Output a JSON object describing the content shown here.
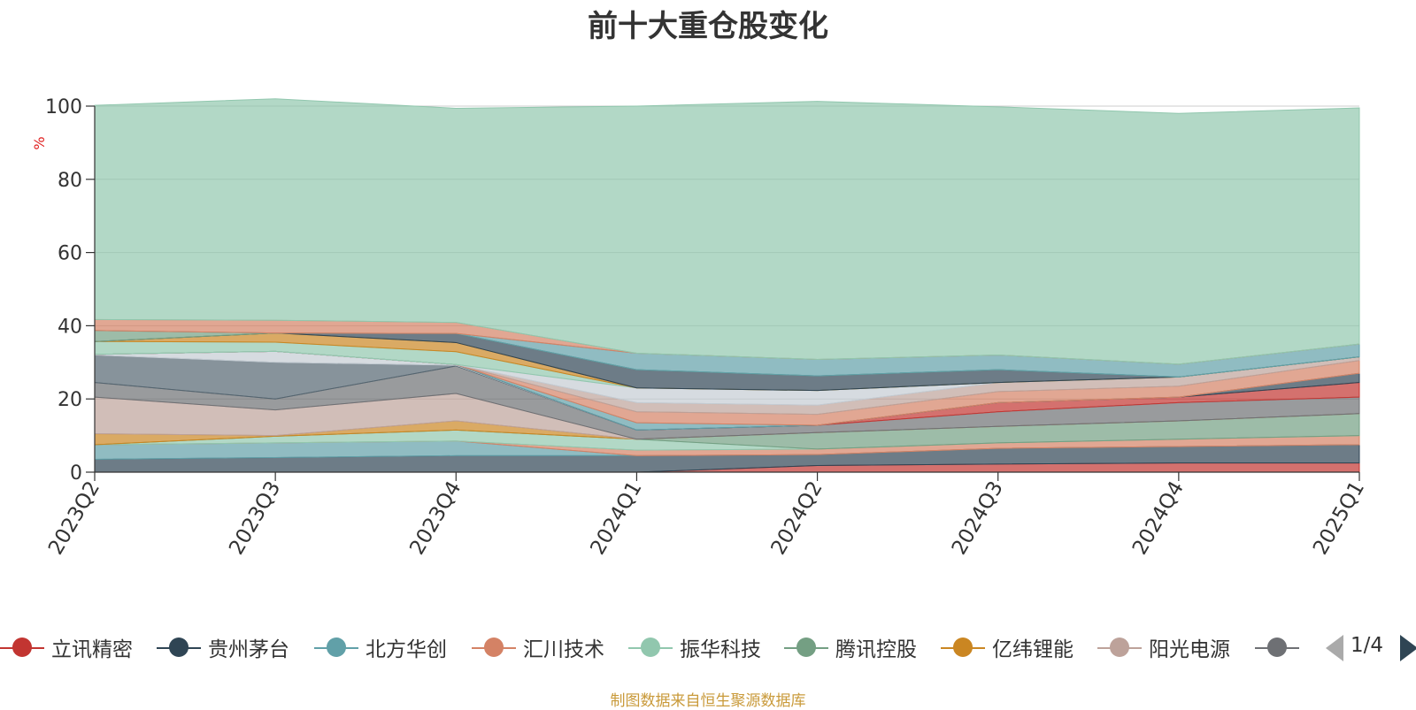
{
  "title": "前十大重仓股变化",
  "source_note": "制图数据来自恒生聚源数据库",
  "legend": {
    "items": [
      {
        "label": "立讯精密",
        "color": "#c23531"
      },
      {
        "label": "贵州茅台",
        "color": "#2f4554"
      },
      {
        "label": "北方华创",
        "color": "#61a0a8"
      },
      {
        "label": "汇川技术",
        "color": "#d48265"
      },
      {
        "label": "振华科技",
        "color": "#91c7ae"
      },
      {
        "label": "腾讯控股",
        "color": "#749f83"
      },
      {
        "label": "亿纬锂能",
        "color": "#ca8622"
      },
      {
        "label": "阳光电源",
        "color": "#bda29a"
      },
      {
        "label": "",
        "color": "#6e7074"
      }
    ],
    "page_text": "1/4"
  },
  "chart_data": {
    "type": "area",
    "stacked": true,
    "title": "前十大重仓股变化",
    "ylabel": "%",
    "ylim": [
      0,
      100
    ],
    "yticks": [
      0,
      20,
      40,
      60,
      80,
      100
    ],
    "grid": true,
    "categories": [
      "2023Q2",
      "2023Q3",
      "2023Q4",
      "2024Q1",
      "2024Q2",
      "2024Q3",
      "2024Q4",
      "2025Q1"
    ],
    "series": [
      {
        "name": "立讯精密",
        "color": "#c23531",
        "values": [
          0,
          0,
          0,
          0,
          1.8,
          2.2,
          2.5,
          2.5
        ]
      },
      {
        "name": "贵州茅台",
        "color": "#2f4554",
        "values": [
          3.5,
          4.0,
          4.5,
          4.5,
          3.0,
          4.3,
          4.5,
          5.0
        ]
      },
      {
        "name": "北方华创",
        "color": "#61a0a8",
        "values": [
          4.0,
          4.0,
          4.0,
          0,
          0,
          0,
          0,
          0
        ]
      },
      {
        "name": "汇川技术",
        "color": "#d48265",
        "values": [
          0,
          0,
          0,
          1.5,
          1.5,
          1.5,
          2.0,
          2.5
        ]
      },
      {
        "name": "振华科技",
        "color": "#91c7ae",
        "values": [
          0,
          1.8,
          3.0,
          3.0,
          0,
          0,
          0,
          0
        ]
      },
      {
        "name": "腾讯控股",
        "color": "#749f83",
        "values": [
          0,
          0,
          0,
          0,
          4.5,
          4.5,
          5.0,
          6.0
        ]
      },
      {
        "name": "亿纬锂能",
        "color": "#ca8622",
        "values": [
          3.0,
          0.2,
          2.5,
          0,
          0,
          0,
          0,
          0
        ]
      },
      {
        "name": "阳光电源",
        "color": "#bda29a",
        "values": [
          10.0,
          7.0,
          7.5,
          0,
          0,
          0,
          0,
          0
        ]
      },
      {
        "color": "#6e7074",
        "values": [
          4.0,
          3.0,
          7.5,
          2.5,
          2.0,
          4.0,
          5.0,
          4.5
        ]
      },
      {
        "color": "#546570",
        "values": [
          7.5,
          10.0,
          0.2,
          0,
          0,
          0,
          0,
          0
        ]
      },
      {
        "color": "#c4ccd3",
        "values": [
          0.2,
          3.0,
          0.2,
          0,
          0,
          0,
          0,
          0
        ]
      },
      {
        "color": "#c23531",
        "values": [
          0,
          0,
          0,
          0,
          0,
          2.5,
          1.5,
          4.0
        ]
      },
      {
        "color": "#2f4554",
        "values": [
          0,
          0,
          0,
          0,
          0,
          0,
          0,
          2.5
        ]
      },
      {
        "color": "#61a0a8",
        "values": [
          0,
          0,
          0,
          2.0,
          0,
          0,
          0,
          0
        ]
      },
      {
        "color": "#d48265",
        "values": [
          0,
          0,
          0,
          3.0,
          3.0,
          3.0,
          3.0,
          3.5
        ]
      },
      {
        "color": "#bda29a",
        "values": [
          0,
          0,
          0,
          2.5,
          2.5,
          2.5,
          2.5,
          1.0
        ]
      },
      {
        "color": "#c4ccd3",
        "values": [
          0,
          0,
          0,
          4.0,
          4.0,
          0,
          0,
          0
        ]
      },
      {
        "color": "#91c7ae",
        "values": [
          3.5,
          2.5,
          3.5,
          0,
          0,
          0,
          0,
          0
        ]
      },
      {
        "color": "#ca8622",
        "values": [
          0,
          2.5,
          2.5,
          0,
          0,
          0,
          0,
          0
        ]
      },
      {
        "color": "#2f4554",
        "values": [
          0,
          0,
          2.5,
          5.0,
          4.0,
          3.5,
          0,
          0
        ]
      },
      {
        "color": "#749f83",
        "values": [
          3.0,
          0,
          0,
          0,
          0,
          0,
          0,
          0
        ]
      },
      {
        "color": "#61a0a8",
        "values": [
          0,
          0,
          0,
          4.5,
          4.5,
          4.0,
          3.5,
          3.5
        ]
      },
      {
        "color": "#d48265",
        "values": [
          3.0,
          3.5,
          3.0,
          0,
          0,
          0,
          0,
          0
        ]
      },
      {
        "color": "#91c7ae",
        "values": [
          58.5,
          60.5,
          58.5,
          67.5,
          70.5,
          67.8,
          68.5,
          64.5
        ]
      }
    ]
  }
}
